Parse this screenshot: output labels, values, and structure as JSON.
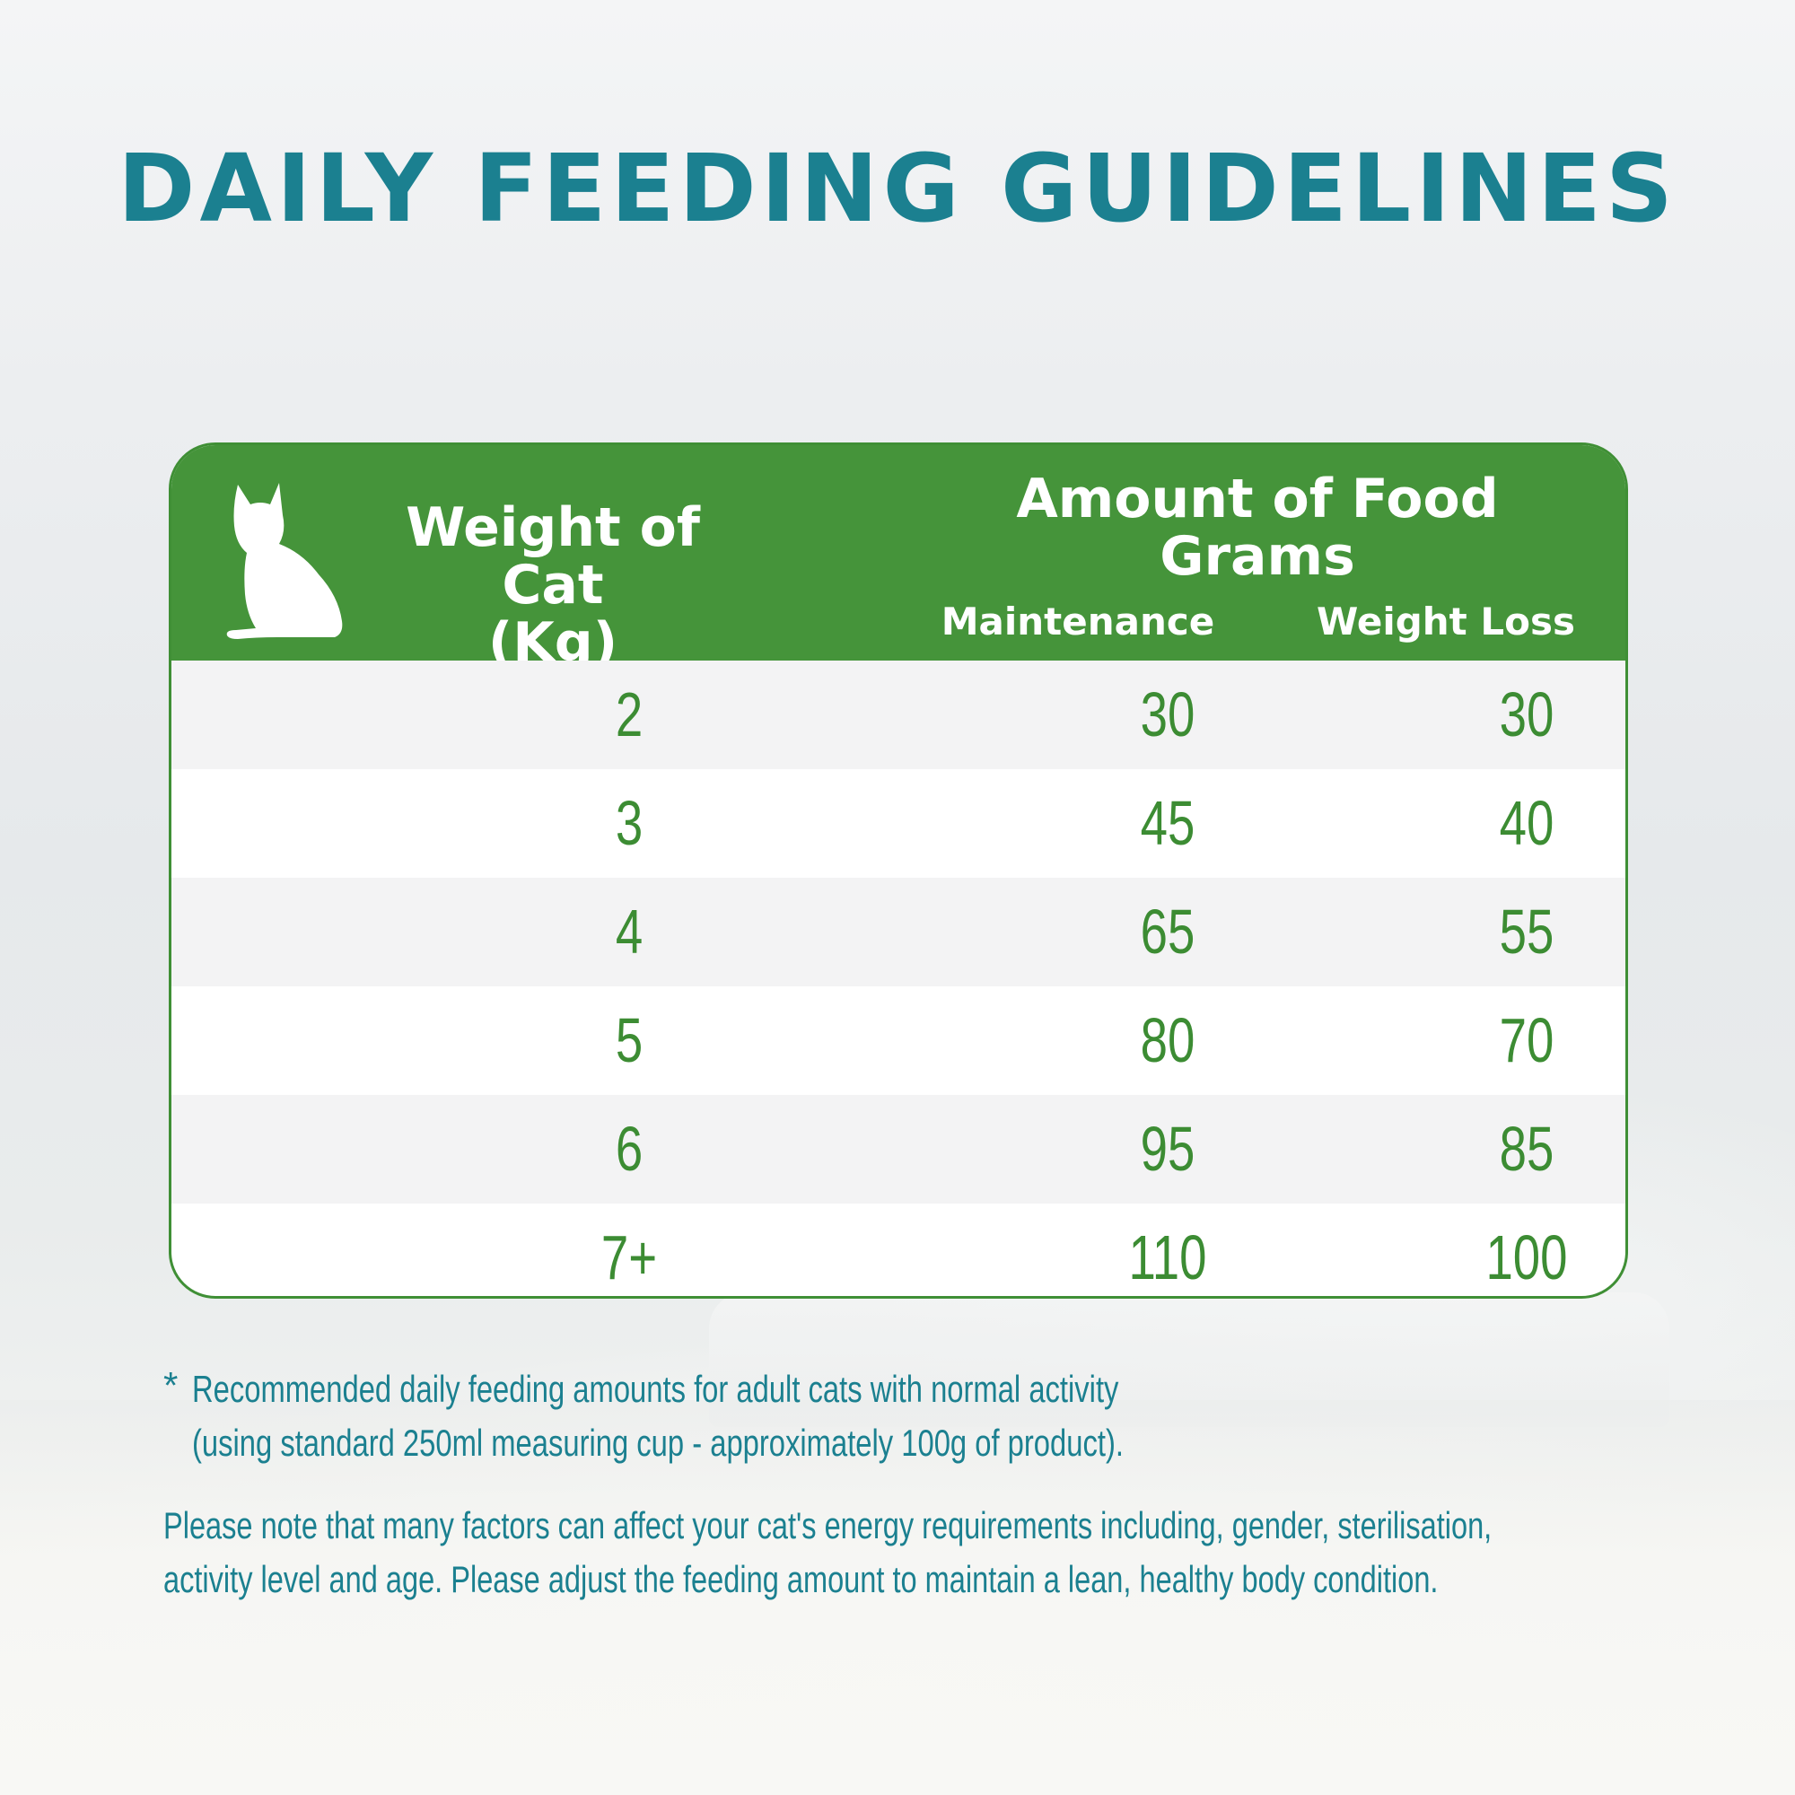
{
  "title": "DAILY FEEDING GUIDELINES",
  "colors": {
    "title_teal": "#1b8090",
    "header_green": "#45943a",
    "value_green": "#3c8c33",
    "row_shade": "#f3f3f4"
  },
  "table": {
    "icon": "cat-silhouette-icon",
    "weight_header_line1": "Weight of Cat",
    "weight_header_line2": "(Kg)",
    "amount_header_line1": "Amount of Food",
    "amount_header_line2": "Grams",
    "col_maintenance": "Maintenance",
    "col_weight_loss": "Weight Loss",
    "rows": [
      {
        "weight": "2",
        "maintenance": "30",
        "weight_loss": "30"
      },
      {
        "weight": "3",
        "maintenance": "45",
        "weight_loss": "40"
      },
      {
        "weight": "4",
        "maintenance": "65",
        "weight_loss": "55"
      },
      {
        "weight": "5",
        "maintenance": "80",
        "weight_loss": "70"
      },
      {
        "weight": "6",
        "maintenance": "95",
        "weight_loss": "85"
      },
      {
        "weight": "7+",
        "maintenance": "110",
        "weight_loss": "100"
      }
    ]
  },
  "footnote": {
    "marker": "*",
    "line1": "Recommended daily feeding amounts for adult cats with normal activity",
    "line2": "(using standard 250ml measuring cup - approximately 100g of product)."
  },
  "note": {
    "line1": "Please note that many factors can affect your cat's energy requirements including, gender, sterilisation,",
    "line2": "activity level and age. Please adjust the feeding amount to maintain a lean, healthy body condition."
  }
}
